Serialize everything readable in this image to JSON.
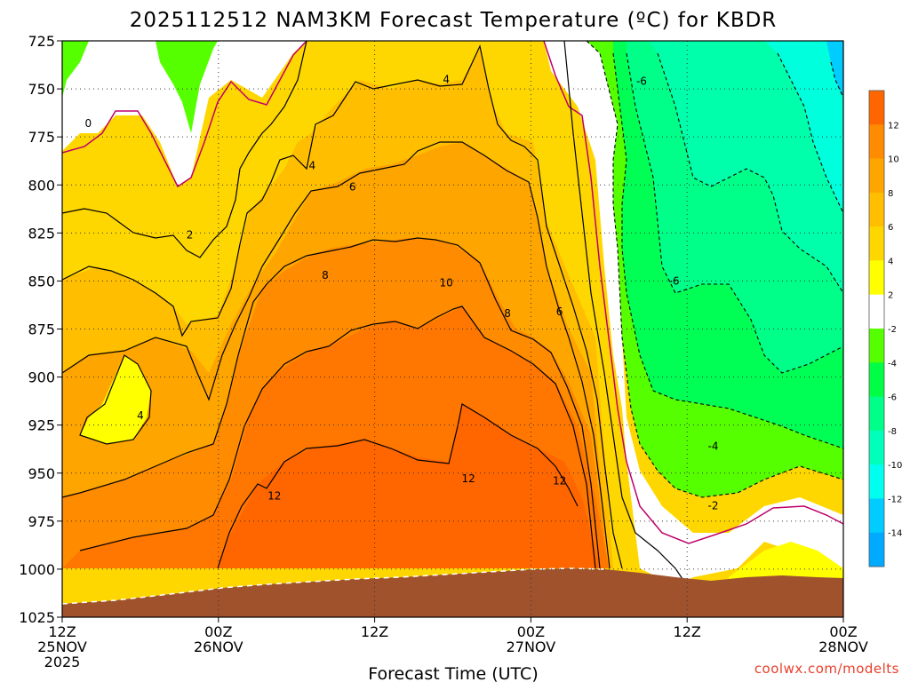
{
  "chart_data": {
    "type": "heatmap",
    "title": "2025112512 NAM3KM Forecast Temperature (ºC) for KBDR",
    "xlabel": "Forecast Time (UTC)",
    "ylabel": "",
    "credit": "coolwx.com/modelts",
    "x_ticks": [
      {
        "hour": 0,
        "l1": "12Z",
        "l2": "25NOV",
        "l3": "2025"
      },
      {
        "hour": 12,
        "l1": "00Z",
        "l2": "26NOV",
        "l3": ""
      },
      {
        "hour": 24,
        "l1": "12Z",
        "l2": "",
        "l3": ""
      },
      {
        "hour": 36,
        "l1": "00Z",
        "l2": "27NOV",
        "l3": ""
      },
      {
        "hour": 48,
        "l1": "12Z",
        "l2": "",
        "l3": ""
      },
      {
        "hour": 60,
        "l1": "00Z",
        "l2": "28NOV",
        "l3": ""
      }
    ],
    "x_range_hours": [
      0,
      60
    ],
    "y_ticks": [
      "725",
      "750",
      "775",
      "800",
      "825",
      "850",
      "875",
      "900",
      "925",
      "950",
      "975",
      "1000",
      "1025"
    ],
    "y_range_hpa": [
      725,
      1025
    ],
    "colorbar": {
      "labels": [
        "12",
        "10",
        "8",
        "6",
        "4",
        "2",
        "-2",
        "-4",
        "-6",
        "-8",
        "-10",
        "-12",
        "-14"
      ],
      "bands": [
        {
          "lo": 14,
          "hi": 12,
          "color": "#ff6600"
        },
        {
          "lo": 12,
          "hi": 10,
          "color": "#ff8c00"
        },
        {
          "lo": 10,
          "hi": 8,
          "color": "#ffa500"
        },
        {
          "lo": 8,
          "hi": 6,
          "color": "#ffbe00"
        },
        {
          "lo": 6,
          "hi": 4,
          "color": "#ffd700"
        },
        {
          "lo": 4,
          "hi": 2,
          "color": "#ffff00"
        },
        {
          "lo": 2,
          "hi": -2,
          "color": "#ffffff"
        },
        {
          "lo": -2,
          "hi": -4,
          "color": "#55ff00"
        },
        {
          "lo": -4,
          "hi": -6,
          "color": "#00ff44"
        },
        {
          "lo": -6,
          "hi": -8,
          "color": "#00ff88"
        },
        {
          "lo": -8,
          "hi": -10,
          "color": "#00ffbb"
        },
        {
          "lo": -10,
          "hi": -12,
          "color": "#00ffee"
        },
        {
          "lo": -12,
          "hi": -14,
          "color": "#00ccff"
        },
        {
          "lo": -14,
          "hi": -16,
          "color": "#00aaff"
        }
      ]
    },
    "ground_color": "#a0522d",
    "contour_labels": [
      {
        "text": "0",
        "hour": 2.0,
        "p": 768
      },
      {
        "text": "4",
        "hour": 29.5,
        "p": 745
      },
      {
        "text": "-6",
        "hour": 44.5,
        "p": 746
      },
      {
        "text": "4",
        "hour": 19.2,
        "p": 790
      },
      {
        "text": "6",
        "hour": 22.3,
        "p": 801
      },
      {
        "text": "2",
        "hour": 9.8,
        "p": 826
      },
      {
        "text": "8",
        "hour": 20.2,
        "p": 847
      },
      {
        "text": "10",
        "hour": 29.5,
        "p": 851
      },
      {
        "text": "-6",
        "hour": 47.0,
        "p": 850
      },
      {
        "text": "8",
        "hour": 34.2,
        "p": 867
      },
      {
        "text": "6",
        "hour": 38.2,
        "p": 866
      },
      {
        "text": "4",
        "hour": 6.0,
        "p": 920
      },
      {
        "text": "-4",
        "hour": 50.0,
        "p": 936
      },
      {
        "text": "12",
        "hour": 16.3,
        "p": 962
      },
      {
        "text": "12",
        "hour": 31.2,
        "p": 953
      },
      {
        "text": "12",
        "hour": 38.2,
        "p": 954
      },
      {
        "text": "-2",
        "hour": 50.0,
        "p": 967
      }
    ]
  }
}
